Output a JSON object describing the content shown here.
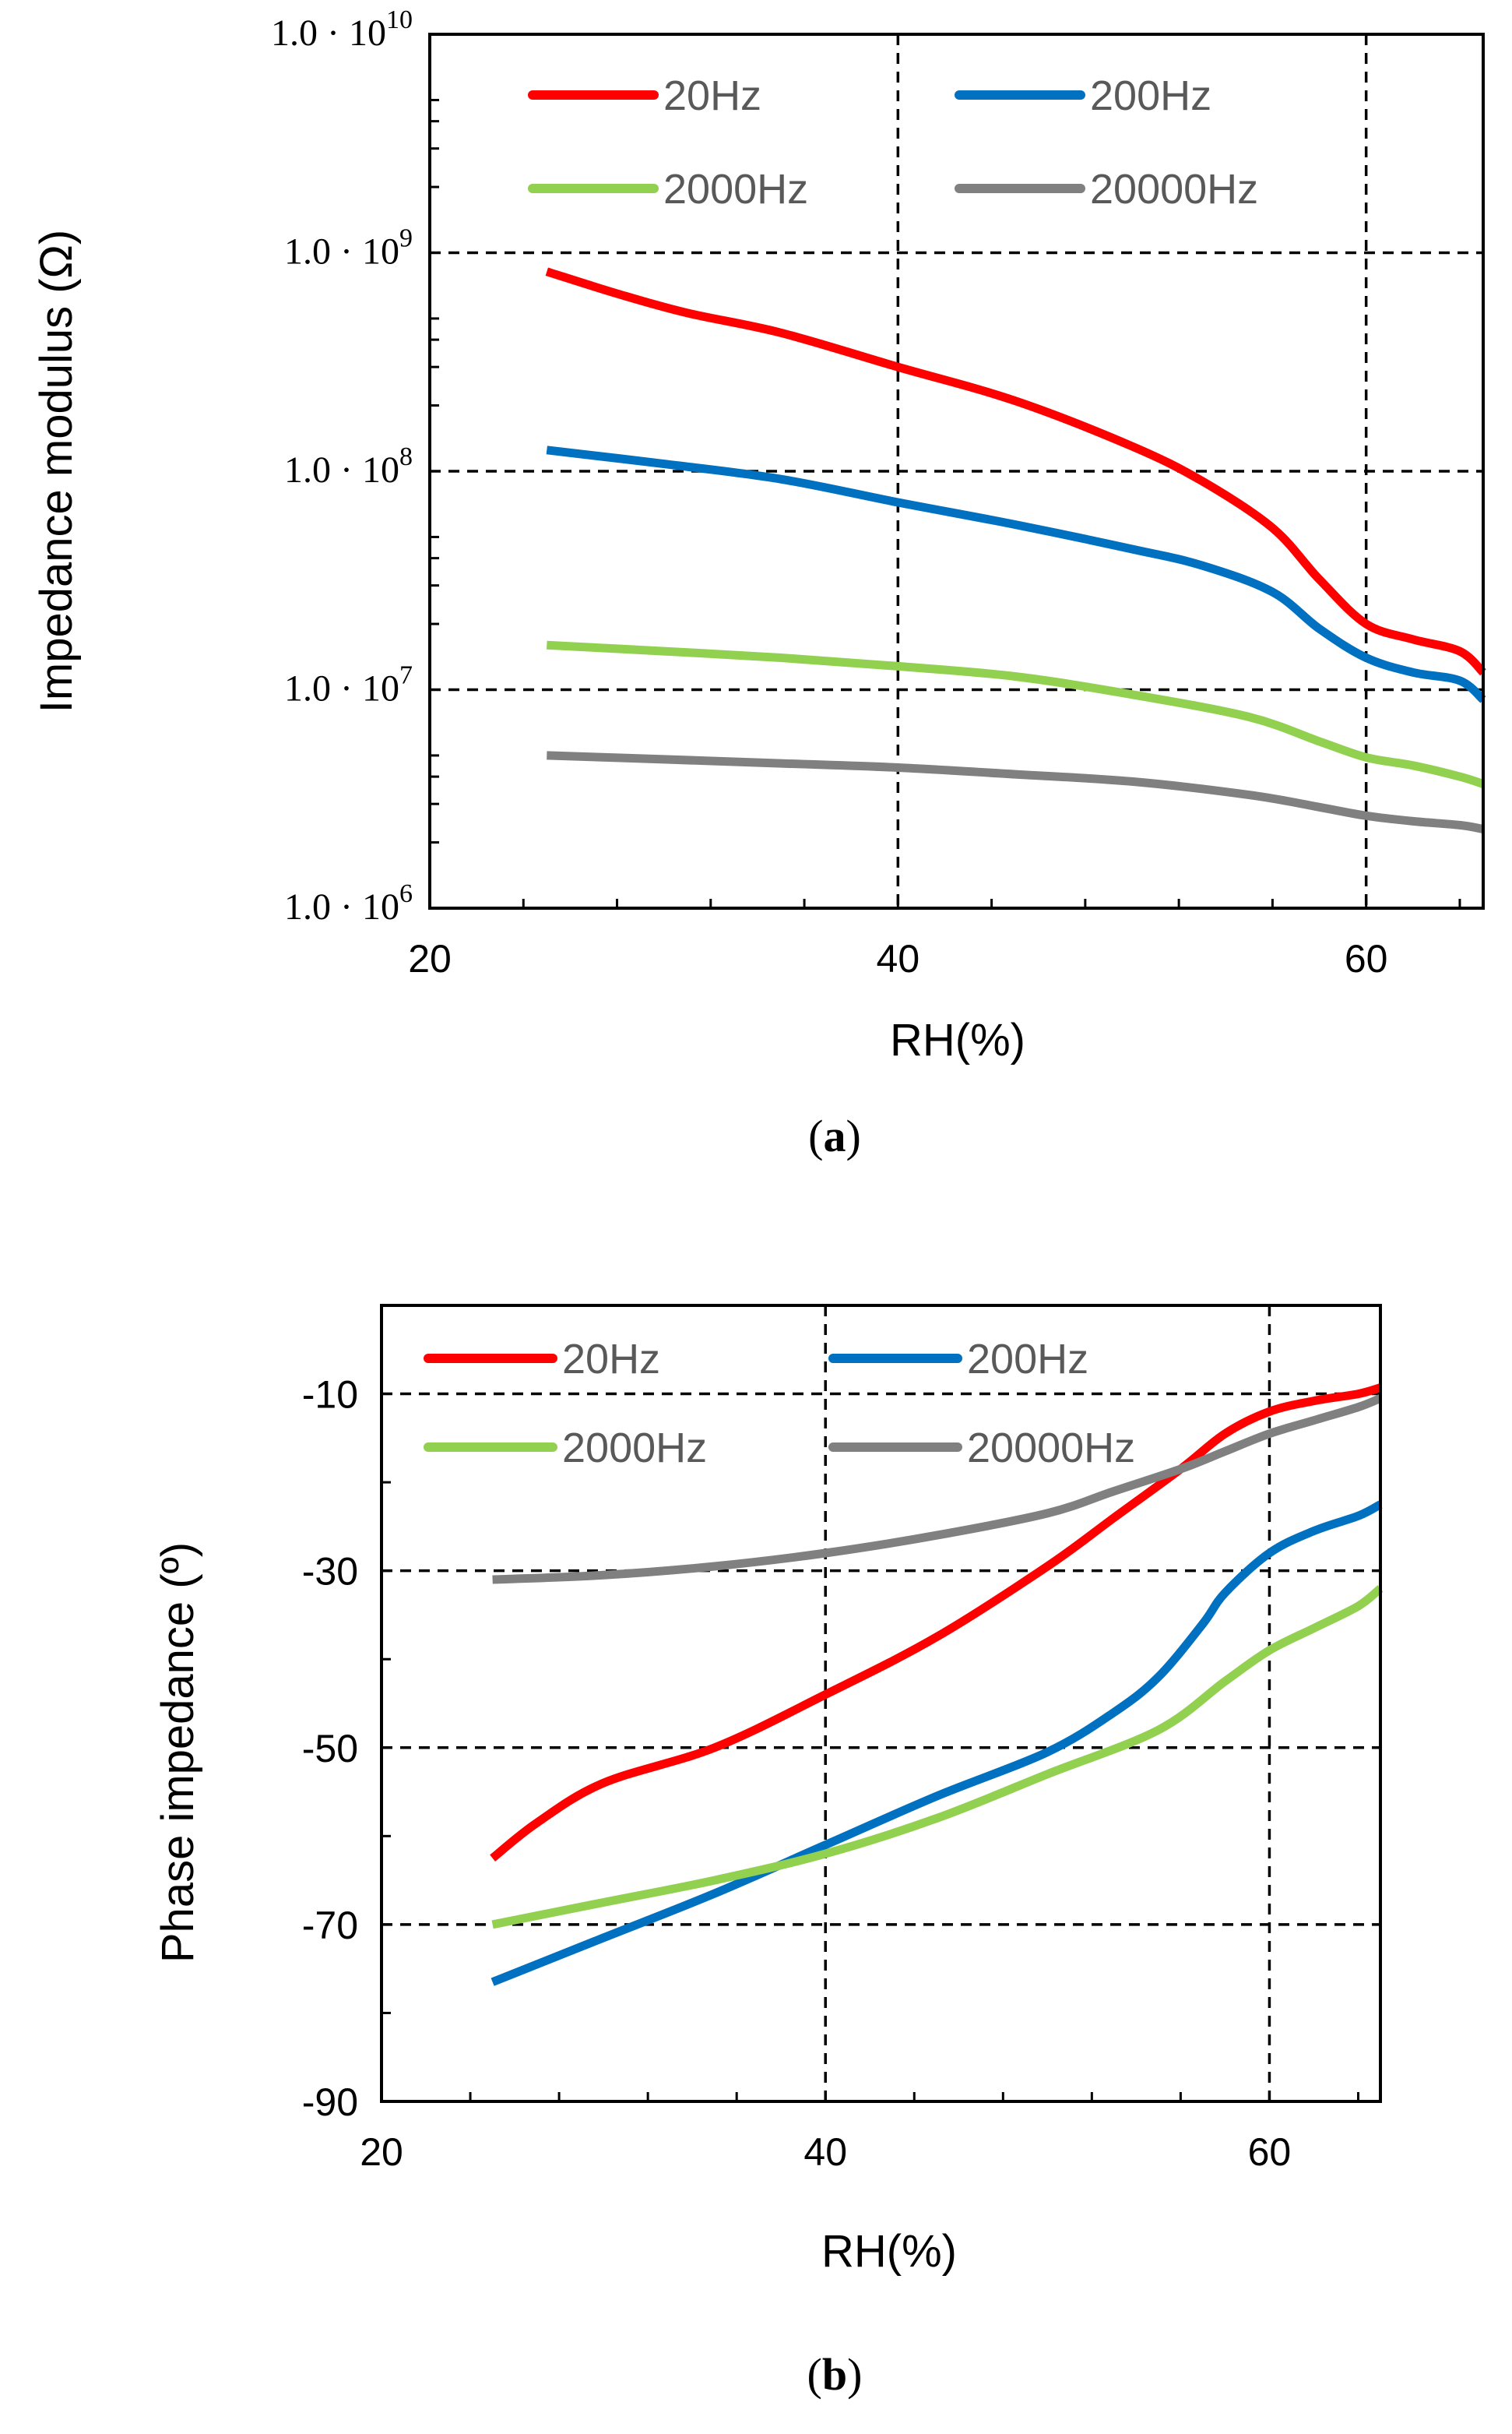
{
  "chart_data": [
    {
      "type": "line",
      "caption_letter": "a",
      "xlabel": "RH(%)",
      "ylabel": "Impedance  modulus (Ω)",
      "xlim": [
        20,
        65
      ],
      "xticks": [
        20,
        40,
        60
      ],
      "y_scale": "log",
      "ylim": [
        1000000,
        10000000000
      ],
      "yticks": [
        {
          "value": 1000000,
          "mantissa": "1.0 · 10",
          "exp": "6"
        },
        {
          "value": 10000000,
          "mantissa": "1.0 · 10",
          "exp": "7"
        },
        {
          "value": 100000000,
          "mantissa": "1.0 · 10",
          "exp": "8"
        },
        {
          "value": 1000000000,
          "mantissa": "1.0 · 10",
          "exp": "9"
        },
        {
          "value": 10000000000,
          "mantissa": "1.0 · 10",
          "exp": "10"
        }
      ],
      "grid_x": [
        40,
        60
      ],
      "grid_y": [
        10000000,
        100000000,
        1000000000
      ],
      "legend_position": "top",
      "series": [
        {
          "name": "20Hz",
          "color": "#ff0000",
          "x": [
            25,
            28,
            31,
            35,
            40,
            45,
            50,
            53,
            56,
            58,
            60,
            62,
            64,
            65
          ],
          "y": [
            820000000,
            650000000,
            530000000,
            430000000,
            300000000,
            210000000,
            130000000,
            90000000,
            55000000,
            32000000,
            20000000,
            17000000,
            15000000,
            12000000
          ]
        },
        {
          "name": "200Hz",
          "color": "#0070c0",
          "x": [
            25,
            30,
            35,
            40,
            45,
            50,
            53,
            56,
            58,
            60,
            62,
            64,
            65
          ],
          "y": [
            125000000,
            108000000,
            92000000,
            72000000,
            57000000,
            44000000,
            37000000,
            28000000,
            19000000,
            14000000,
            12000000,
            11000000,
            9000000
          ]
        },
        {
          "name": "2000Hz",
          "color": "#92d050",
          "x": [
            25,
            30,
            35,
            40,
            45,
            50,
            55,
            58,
            60,
            62,
            64,
            65
          ],
          "y": [
            16000000,
            15000000,
            14000000,
            12800000,
            11500000,
            9500000,
            7500000,
            5800000,
            4900000,
            4500000,
            4000000,
            3700000
          ]
        },
        {
          "name": "20000Hz",
          "color": "#808080",
          "x": [
            25,
            30,
            35,
            40,
            45,
            50,
            55,
            58,
            60,
            62,
            64,
            65
          ],
          "y": [
            5000000,
            4800000,
            4600000,
            4400000,
            4100000,
            3800000,
            3300000,
            2900000,
            2650000,
            2500000,
            2400000,
            2300000
          ]
        }
      ]
    },
    {
      "type": "line",
      "caption_letter": "b",
      "xlabel": "RH(%)",
      "ylabel": "Phase impedance (º)",
      "xlim": [
        20,
        65
      ],
      "xticks": [
        20,
        40,
        60
      ],
      "y_scale": "linear",
      "ylim": [
        -90,
        0
      ],
      "yticks": [
        {
          "value": -10,
          "label": "-10"
        },
        {
          "value": -30,
          "label": "-30"
        },
        {
          "value": -50,
          "label": "-50"
        },
        {
          "value": -70,
          "label": "-70"
        },
        {
          "value": -90,
          "label": "-90"
        }
      ],
      "grid_x": [
        40,
        60
      ],
      "grid_y": [
        -10,
        -30,
        -50,
        -70
      ],
      "legend_position": "top",
      "series": [
        {
          "name": "20Hz",
          "color": "#ff0000",
          "x": [
            25,
            27,
            30,
            35,
            40,
            45,
            50,
            53,
            56,
            58,
            60,
            62,
            64,
            65
          ],
          "y": [
            -62.5,
            -58.5,
            -54,
            -50,
            -44,
            -37.5,
            -29.5,
            -24,
            -18.5,
            -14.5,
            -12,
            -10.8,
            -10,
            -9.3
          ]
        },
        {
          "name": "200Hz",
          "color": "#0070c0",
          "x": [
            25,
            30,
            35,
            40,
            45,
            50,
            53,
            55,
            57,
            58,
            60,
            62,
            64,
            65
          ],
          "y": [
            -76.5,
            -71.5,
            -66.5,
            -61,
            -55.5,
            -50.5,
            -46,
            -42,
            -36,
            -32.5,
            -28,
            -25.5,
            -23.8,
            -22.5
          ]
        },
        {
          "name": "2000Hz",
          "color": "#92d050",
          "x": [
            25,
            30,
            35,
            40,
            45,
            50,
            55,
            58,
            60,
            62,
            64,
            65
          ],
          "y": [
            -70,
            -67.5,
            -65,
            -62,
            -58,
            -53,
            -48,
            -42.5,
            -39,
            -36.5,
            -34,
            -32
          ]
        },
        {
          "name": "20000Hz",
          "color": "#808080",
          "x": [
            25,
            30,
            35,
            40,
            45,
            50,
            53,
            56,
            58,
            60,
            62,
            64,
            65
          ],
          "y": [
            -31,
            -30.5,
            -29.5,
            -28,
            -26,
            -23.5,
            -21,
            -18.5,
            -16.5,
            -14.5,
            -13,
            -11.5,
            -10.5
          ]
        }
      ]
    }
  ]
}
